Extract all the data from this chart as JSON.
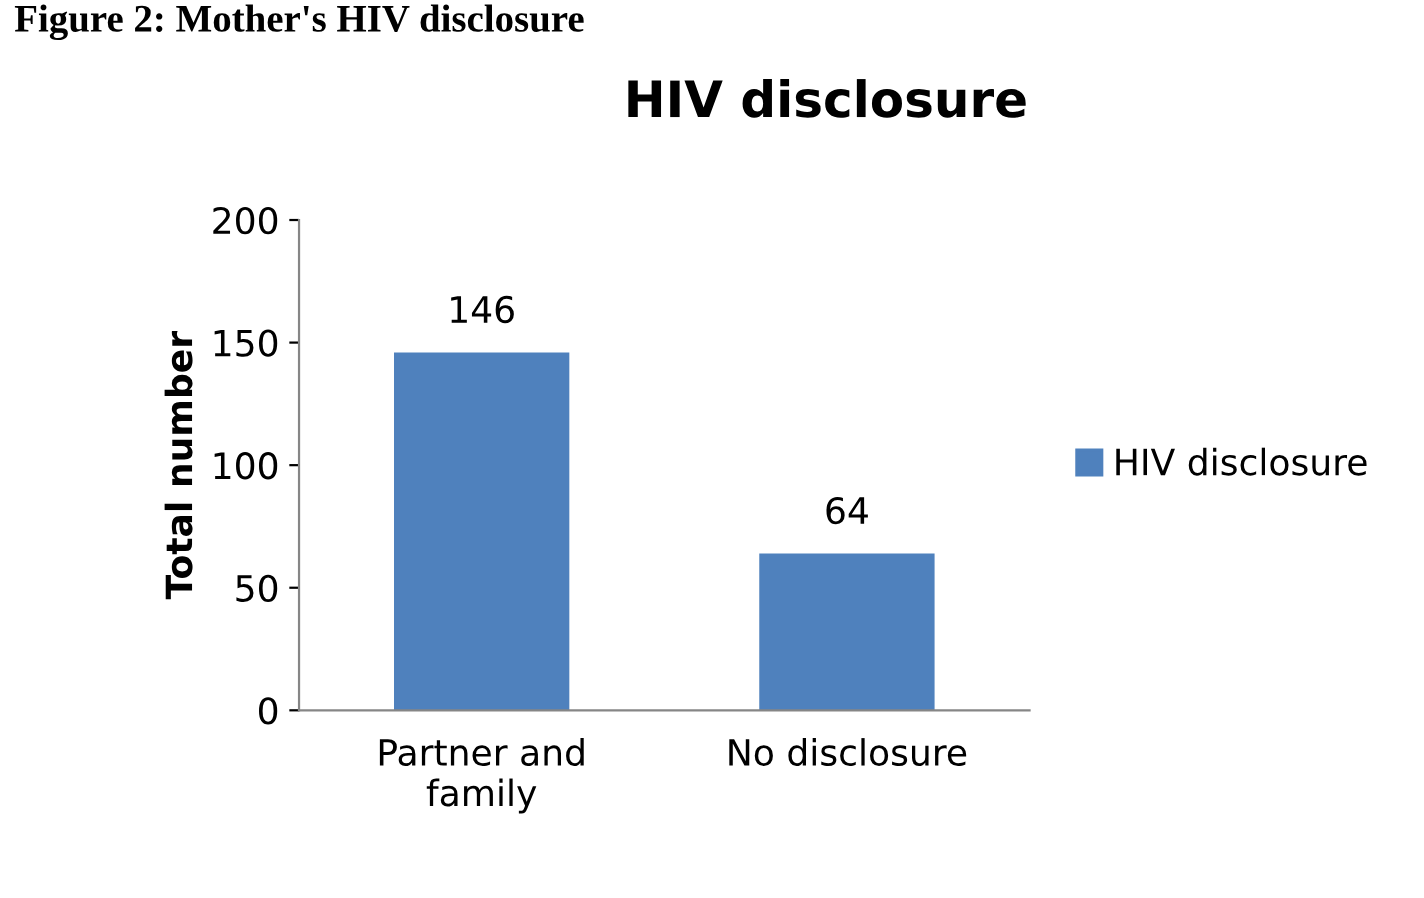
{
  "chart_data": {
    "type": "bar",
    "title": "HIV disclosure",
    "ylabel": "Total number",
    "categories": [
      "Partner and\nfamily",
      "No disclosure"
    ],
    "series": [
      {
        "name": "HIV disclosure",
        "color": "#4f81bd",
        "values": [
          146,
          64
        ]
      }
    ],
    "ylim": [
      0,
      200
    ],
    "yticks": [
      0,
      50,
      100,
      150,
      200
    ],
    "grid": false,
    "legend": "right",
    "data_labels": true,
    "annotations": [
      "Figure 2: Mother's HIV disclosure"
    ]
  }
}
